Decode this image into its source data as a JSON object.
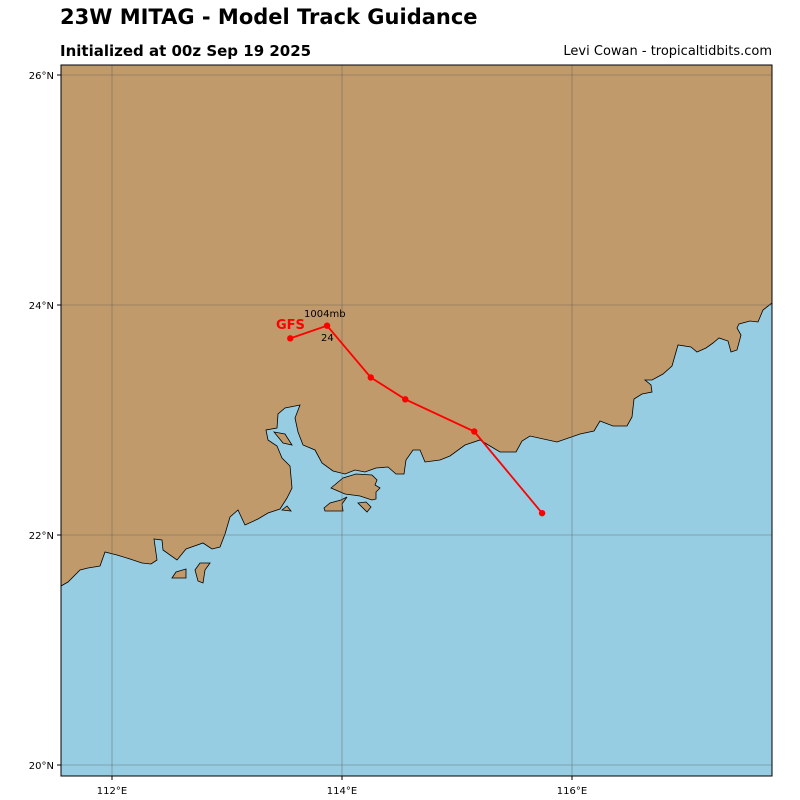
{
  "header": {
    "title": "23W MITAG - Model Track Guidance",
    "subtitle": "Initialized at 00z Sep 19 2025",
    "credit": "Levi Cowan - tropicaltidbits.com"
  },
  "map": {
    "lon_range": [
      111.55,
      117.75
    ],
    "lat_range": [
      19.9,
      26.1
    ],
    "lon_ticks": [
      112,
      114,
      116
    ],
    "lon_labels": [
      "112°E",
      "114°E",
      "116°E"
    ],
    "lat_ticks": [
      20,
      22,
      24,
      26
    ],
    "lat_labels": [
      "20°N",
      "22°N",
      "24°N",
      "26°N"
    ],
    "colors": {
      "land": "#c19a6b",
      "ocean": "#96cde2",
      "grid": "#555555",
      "track": "#ff0000"
    }
  },
  "tracks": [
    {
      "model": "GFS",
      "color": "#ff0000",
      "points": [
        {
          "lon": 115.74,
          "lat": 22.19
        },
        {
          "lon": 115.15,
          "lat": 22.9
        },
        {
          "lon": 114.55,
          "lat": 23.18
        },
        {
          "lon": 114.25,
          "lat": 23.37
        },
        {
          "lon": 113.87,
          "lat": 23.82
        },
        {
          "lon": 113.55,
          "lat": 23.71
        }
      ],
      "pressure_label": "1004mb",
      "hour_label": "24"
    }
  ]
}
